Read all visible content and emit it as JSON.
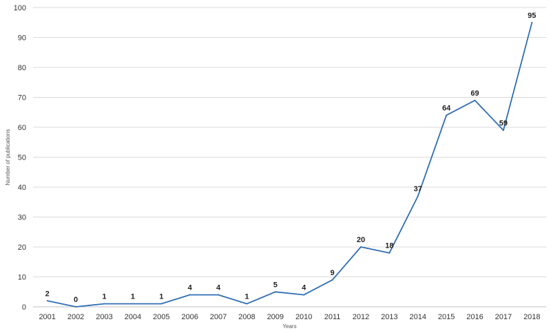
{
  "chart_data": {
    "type": "line",
    "title": "",
    "xlabel": "Years",
    "ylabel": "Number of publications",
    "categories": [
      "2001",
      "2002",
      "2003",
      "2004",
      "2005",
      "2006",
      "2007",
      "2008",
      "2009",
      "2010",
      "2011",
      "2012",
      "2013",
      "2014",
      "2015",
      "2016",
      "2017",
      "2018"
    ],
    "series": [
      {
        "values": [
          2,
          0,
          1,
          1,
          1,
          4,
          4,
          1,
          5,
          4,
          9,
          20,
          18,
          37,
          64,
          69,
          59,
          95
        ],
        "color": "#2e6db4"
      }
    ],
    "ylim": [
      0,
      100
    ],
    "yticks": [
      0,
      10,
      20,
      30,
      40,
      50,
      60,
      70,
      80,
      90,
      100
    ],
    "grid": true,
    "legend": "none",
    "data_labels": true
  }
}
